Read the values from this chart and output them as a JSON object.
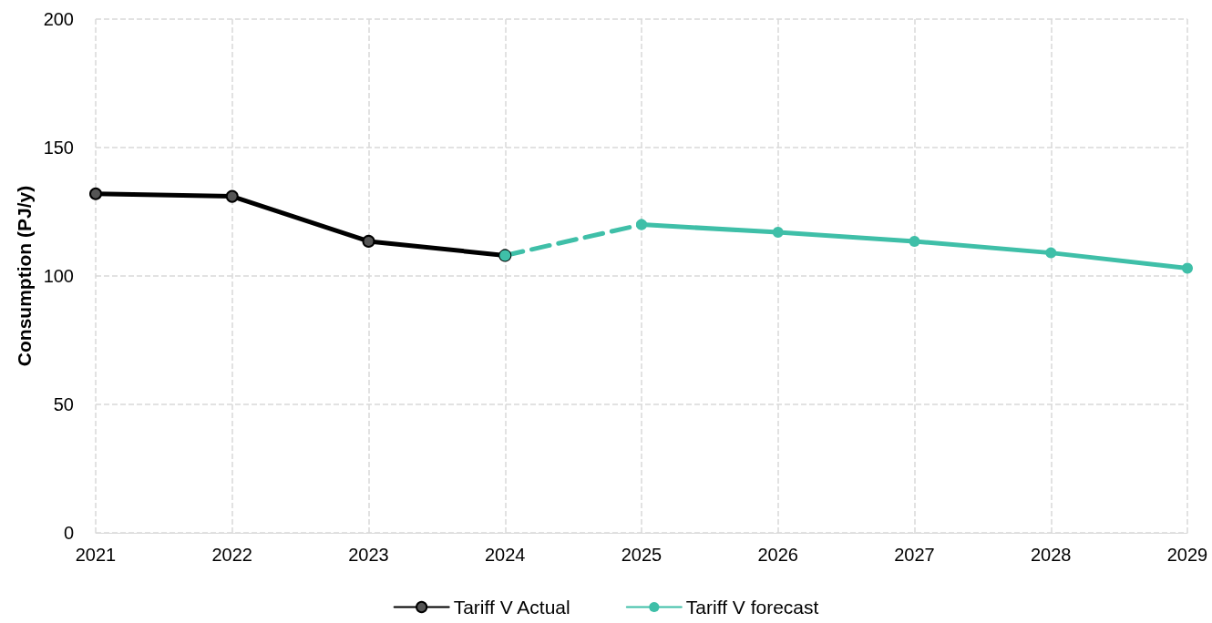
{
  "chart_data": {
    "type": "line",
    "ylabel": "Consumption (PJ/y)",
    "categories": [
      "2021",
      "2022",
      "2023",
      "2024",
      "2025",
      "2026",
      "2027",
      "2028",
      "2029"
    ],
    "series": [
      {
        "name": "Tariff V Actual",
        "color": "#000000",
        "marker": "circle",
        "line_style": "solid",
        "values": [
          132,
          131,
          113.5,
          108,
          null,
          null,
          null,
          null,
          null
        ]
      },
      {
        "color": "#3fbfa8",
        "marker": "circle",
        "line_style": "dashed",
        "values": [
          null,
          null,
          null,
          108,
          120,
          null,
          null,
          null,
          null
        ]
      },
      {
        "name": "Tariff V forecast",
        "color": "#3fbfa8",
        "marker": "circle",
        "line_style": "solid",
        "values": [
          null,
          null,
          null,
          null,
          120,
          117,
          113.5,
          109,
          103
        ]
      }
    ],
    "ylim": [
      0,
      200
    ],
    "yticks": [
      0,
      50,
      100,
      150,
      200
    ],
    "grid": true,
    "legend": "bottom"
  }
}
